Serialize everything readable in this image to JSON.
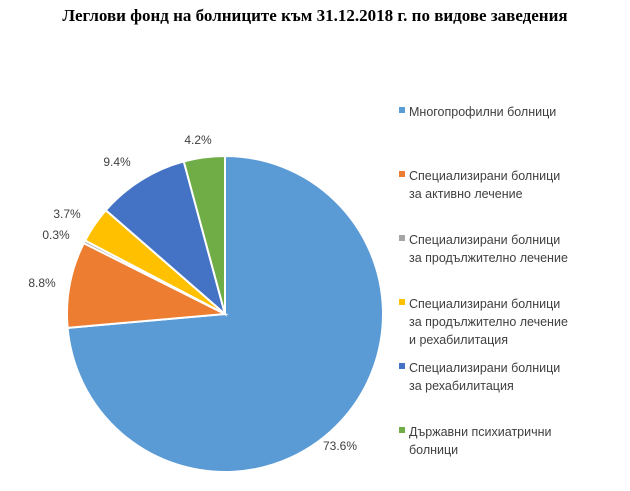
{
  "chart_data": {
    "type": "pie",
    "title": "Леглови фонд на болниците към 31.12.2018 г. по видове заведения",
    "slices": [
      {
        "value": 73.6,
        "label": "73.6%",
        "color": "#5B9BD5",
        "legend": [
          "Многопрофилни болници"
        ]
      },
      {
        "value": 8.8,
        "label": "8.8%",
        "color": "#ED7D31",
        "legend": [
          "Специализирани болници",
          "за активно лечение"
        ]
      },
      {
        "value": 0.3,
        "label": "0.3%",
        "color": "#A5A5A5",
        "legend": [
          "Специализирани болници",
          "за продължително лечение"
        ]
      },
      {
        "value": 3.7,
        "label": "3.7%",
        "color": "#FFC000",
        "legend": [
          "Специализирани болници",
          "за продължително лечение",
          "и рехабилитация"
        ]
      },
      {
        "value": 9.4,
        "label": "9.4%",
        "color": "#4472C4",
        "legend": [
          "Специализирани болници",
          "за рехабилитация"
        ]
      },
      {
        "value": 4.2,
        "label": "4.2%",
        "color": "#70AD47",
        "legend": [
          "Държавни психиатрични",
          "болници"
        ]
      }
    ],
    "legend_position": "right"
  }
}
